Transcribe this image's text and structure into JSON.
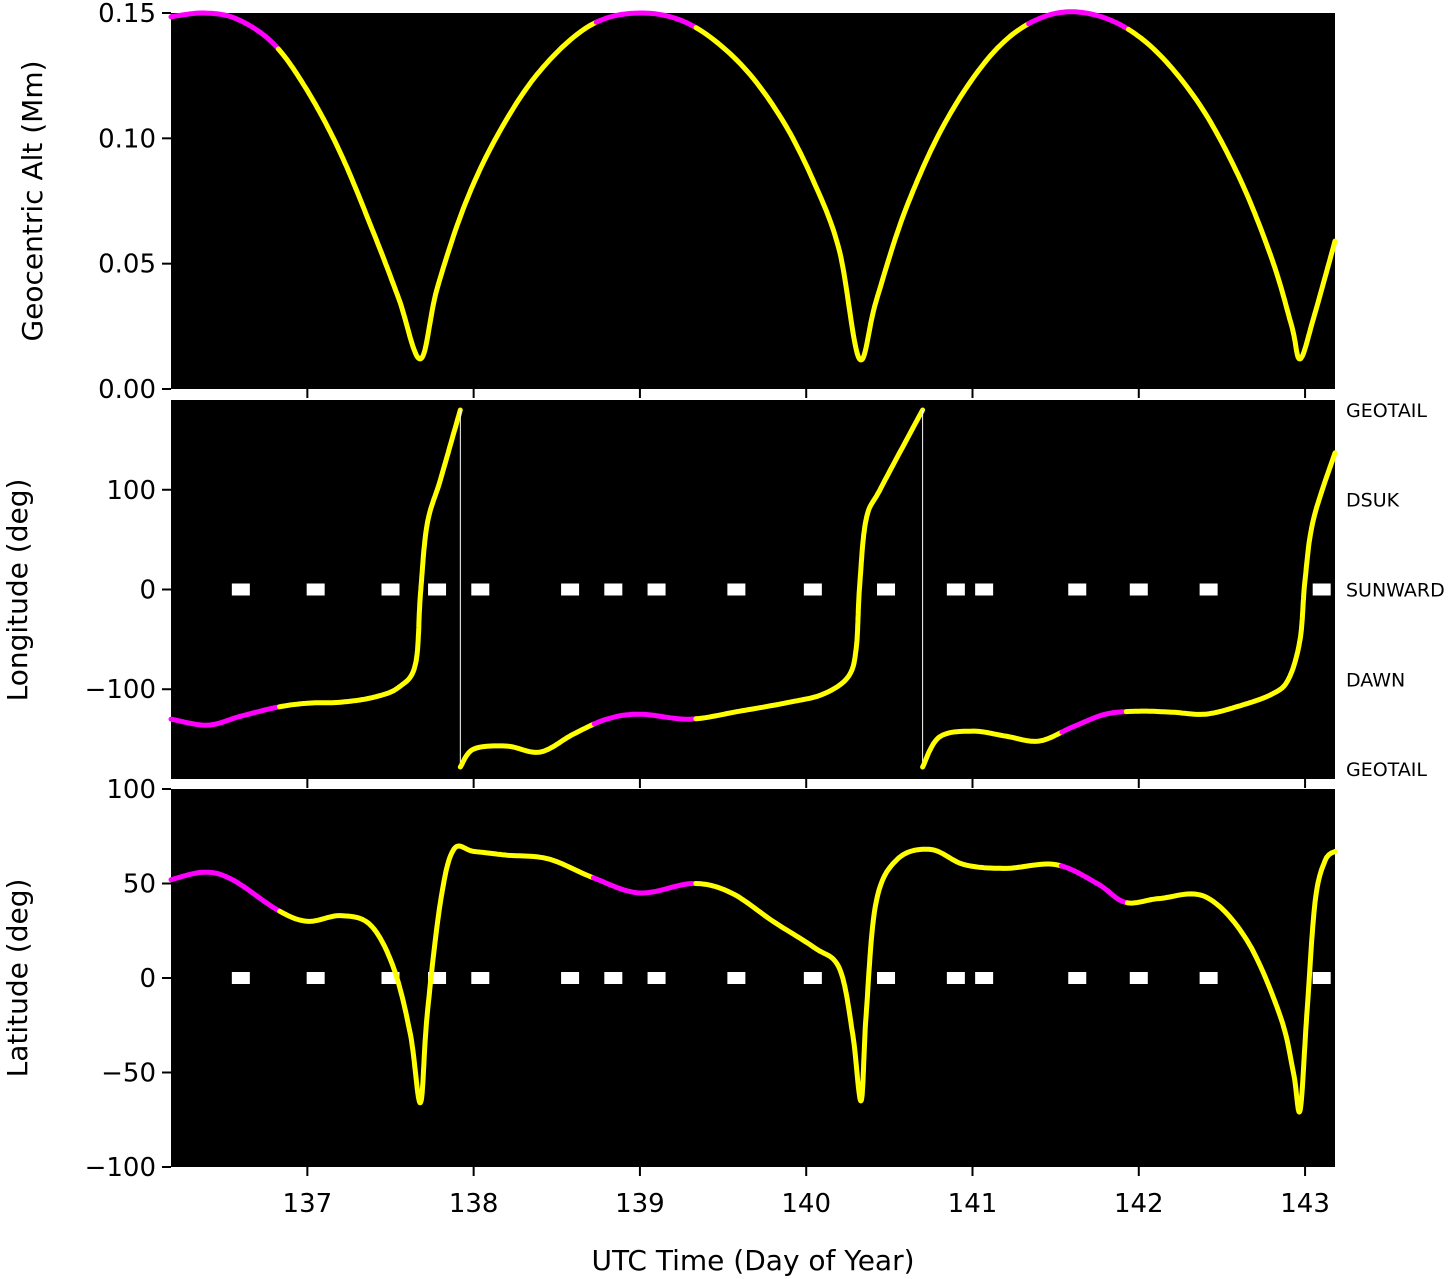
{
  "chart_data": [
    {
      "type": "line",
      "ylabel": "Geocentric Alt (Mm)",
      "xlabel": "",
      "xlim": [
        136.18,
        143.18
      ],
      "ylim": [
        0.0,
        0.15
      ],
      "yticks": [
        0.0,
        0.05,
        0.1,
        0.15
      ],
      "ytick_labels": [
        "0.00",
        "0.05",
        "0.10",
        "0.15"
      ],
      "grid": false,
      "background": "#000000",
      "colors": {
        "default": "#ffff00",
        "highlight": "#ff00ff"
      },
      "series": [
        {
          "x": [
            136.18,
            136.38,
            136.58,
            136.8,
            137.0,
            137.2,
            137.4,
            137.55,
            137.68,
            137.78,
            137.95,
            138.15,
            138.4,
            138.7,
            139.0,
            139.3,
            139.6,
            139.85,
            140.05,
            140.2,
            140.32,
            140.42,
            140.6,
            140.85,
            141.15,
            141.45,
            141.75,
            142.05,
            142.35,
            142.6,
            142.8,
            142.92,
            142.97,
            143.05,
            143.18
          ],
          "y": [
            0.1485,
            0.15,
            0.1475,
            0.1375,
            0.119,
            0.094,
            0.062,
            0.036,
            0.012,
            0.04,
            0.074,
            0.102,
            0.127,
            0.145,
            0.15,
            0.1455,
            0.13,
            0.108,
            0.082,
            0.055,
            0.012,
            0.035,
            0.072,
            0.108,
            0.136,
            0.149,
            0.149,
            0.138,
            0.115,
            0.085,
            0.052,
            0.025,
            0.012,
            0.028,
            0.059
          ]
        }
      ],
      "highlights": [
        [
          136.18,
          136.82
        ],
        [
          138.72,
          139.32
        ],
        [
          141.33,
          141.92
        ]
      ]
    },
    {
      "type": "line",
      "ylabel": "Longitude (deg)",
      "xlabel": "",
      "xlim": [
        136.18,
        143.18
      ],
      "ylim": [
        -190,
        190
      ],
      "yticks": [
        -100,
        0,
        100
      ],
      "ytick_labels": [
        "−100",
        "0",
        "100"
      ],
      "right_labels": [
        {
          "label": "GEOTAIL",
          "y": 180
        },
        {
          "label": "DSUK",
          "y": 90
        },
        {
          "label": "SUNWARD",
          "y": 0
        },
        {
          "label": "DAWN",
          "y": -90
        },
        {
          "label": "GEOTAIL",
          "y": -180
        }
      ],
      "grid": false,
      "background": "#000000",
      "colors": {
        "default": "#ffff00",
        "highlight": "#ff00ff",
        "marker": "#ffffff"
      },
      "series": [
        {
          "x": [
            136.18,
            136.4,
            136.6,
            136.82,
            137.0,
            137.2,
            137.4,
            137.55,
            137.65,
            137.68,
            137.72,
            137.8,
            137.92
          ],
          "y": [
            -130,
            -136,
            -127,
            -118,
            -114,
            -113,
            -108,
            -98,
            -75,
            -5,
            65,
            110,
            180
          ]
        },
        {
          "x": [
            137.92,
            138.0,
            138.2,
            138.4,
            138.6,
            138.8,
            139.0,
            139.3,
            139.6,
            139.9,
            140.1,
            140.25,
            140.3,
            140.32,
            140.36,
            140.45,
            140.7
          ],
          "y": [
            -178,
            -160,
            -157,
            -163,
            -145,
            -130,
            -125,
            -130,
            -122,
            -113,
            -105,
            -88,
            -60,
            0,
            70,
            102,
            180
          ]
        },
        {
          "x": [
            140.7,
            140.8,
            141.0,
            141.2,
            141.4,
            141.6,
            141.8,
            142.0,
            142.2,
            142.4,
            142.6,
            142.8,
            142.9,
            142.97,
            143.0,
            143.05,
            143.18
          ],
          "y": [
            -178,
            -148,
            -142,
            -147,
            -152,
            -138,
            -125,
            -122,
            -123,
            -125,
            -117,
            -105,
            -90,
            -50,
            10,
            70,
            137
          ]
        }
      ],
      "markers_x": [
        136.6,
        137.05,
        137.5,
        137.78,
        138.04,
        138.58,
        138.84,
        139.1,
        139.58,
        140.04,
        140.48,
        140.9,
        141.07,
        141.63,
        142.0,
        142.42,
        143.1
      ],
      "markers_y": 0,
      "highlights": [
        [
          136.18,
          136.82
        ],
        [
          138.72,
          139.32
        ],
        [
          141.53,
          141.92
        ]
      ]
    },
    {
      "type": "line",
      "ylabel": "Latitude (deg)",
      "xlabel": "UTC Time (Day of Year)",
      "xlim": [
        136.18,
        143.18
      ],
      "ylim": [
        -100,
        100
      ],
      "yticks": [
        -100,
        -50,
        0,
        50,
        100
      ],
      "ytick_labels": [
        "−100",
        "−50",
        "0",
        "50",
        "100"
      ],
      "xticks": [
        137,
        138,
        139,
        140,
        141,
        142,
        143
      ],
      "xtick_labels": [
        "137",
        "138",
        "139",
        "140",
        "141",
        "142",
        "143"
      ],
      "grid": false,
      "background": "#000000",
      "colors": {
        "default": "#ffff00",
        "highlight": "#ff00ff",
        "marker": "#ffffff"
      },
      "series": [
        {
          "x": [
            136.18,
            136.38,
            136.55,
            136.82,
            137.0,
            137.2,
            137.38,
            137.52,
            137.62,
            137.68,
            137.72,
            137.8,
            137.88,
            138.0,
            138.2,
            138.45,
            138.72,
            139.0,
            139.32,
            139.55,
            139.8,
            140.05,
            140.2,
            140.28,
            140.33,
            140.36,
            140.42,
            140.55,
            140.75,
            140.95,
            141.2,
            141.5,
            141.75,
            141.92,
            142.12,
            142.4,
            142.65,
            142.85,
            142.93,
            142.97,
            143.01,
            143.06,
            143.12,
            143.18
          ],
          "y": [
            52,
            56,
            52,
            36,
            30,
            33,
            28,
            5,
            -30,
            -66,
            -20,
            40,
            68,
            67,
            65,
            63,
            53,
            45,
            50,
            45,
            30,
            16,
            5,
            -30,
            -65,
            -20,
            40,
            63,
            68,
            60,
            58,
            60,
            50,
            40,
            42,
            43,
            20,
            -20,
            -50,
            -70,
            -20,
            40,
            62,
            67
          ]
        }
      ],
      "markers_x": [
        136.6,
        137.05,
        137.5,
        137.78,
        138.04,
        138.58,
        138.84,
        139.1,
        139.58,
        140.04,
        140.48,
        140.9,
        141.07,
        141.63,
        142.0,
        142.42,
        143.1
      ],
      "markers_y": 0,
      "highlights": [
        [
          136.18,
          136.82
        ],
        [
          138.72,
          139.32
        ],
        [
          141.53,
          141.92
        ]
      ]
    }
  ]
}
